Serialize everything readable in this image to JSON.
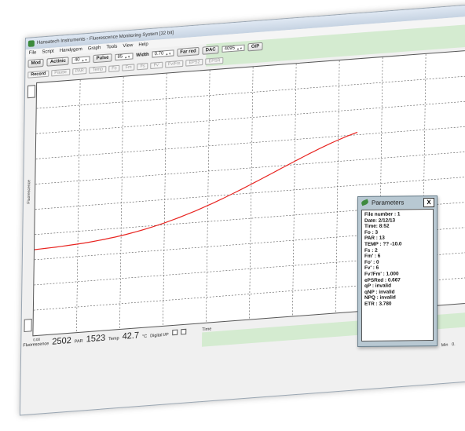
{
  "window": {
    "title": "Hansatech Instruments - Fluorescence Monitoring System [32 bit]"
  },
  "menu": [
    "File",
    "Script",
    "Handygem",
    "Graph",
    "Tools",
    "View",
    "Help"
  ],
  "toolbar": {
    "mod_label": "Mod",
    "actinic_label": "Actinic",
    "actinic_value": "40",
    "pulse_label": "Pulse",
    "pulse_value": "85",
    "width_label": "Width",
    "width_value": "0.70",
    "far_red_label": "Far red",
    "dac_label": "DAC",
    "dac_value": "4095",
    "op_label": "O/P"
  },
  "toolbar2": {
    "record_label": "Record",
    "items": [
      "Pause",
      "PAR",
      "Temp",
      "Fo",
      "Fm",
      "Fs",
      "Fv'",
      "Fv/Fm",
      "EPS2",
      "EPSR"
    ]
  },
  "plot": {
    "ylabel": "Fluorescence",
    "y_tick_top": "100",
    "x_tick_start": "0.00",
    "xlabel": "Time",
    "min_label": "Min",
    "min_value": "0."
  },
  "status": {
    "fluorescence_label": "Fluorescence",
    "fluorescence_value": "2502",
    "par_label": "PAR",
    "par_value": "1523",
    "temp_label": "Temp",
    "temp_value": "42.7",
    "temp_unit": "°C",
    "digital_label": "Digital I/P"
  },
  "parameters": {
    "title": "Parameters",
    "close_label": "X",
    "lines": [
      "File number : 1",
      "Date:  2/12/13",
      "Time:  8:52",
      "Fo : 3",
      "PAR : 13",
      "TEMP : ?? -10.0",
      "Fs : 2",
      "Fm' : 6",
      "Fo' : 0",
      "Fv' : 6",
      "Fv'/Fm' : 1.000",
      "ePSRed : 0.667",
      "qP : invalid",
      "qNP : invalid",
      "NPQ : invalid",
      "ETR : 3.780"
    ]
  },
  "colors": {
    "trace": "#e8231f",
    "accent_band": "#d4ebd0",
    "panel": "#b8c8d2"
  }
}
